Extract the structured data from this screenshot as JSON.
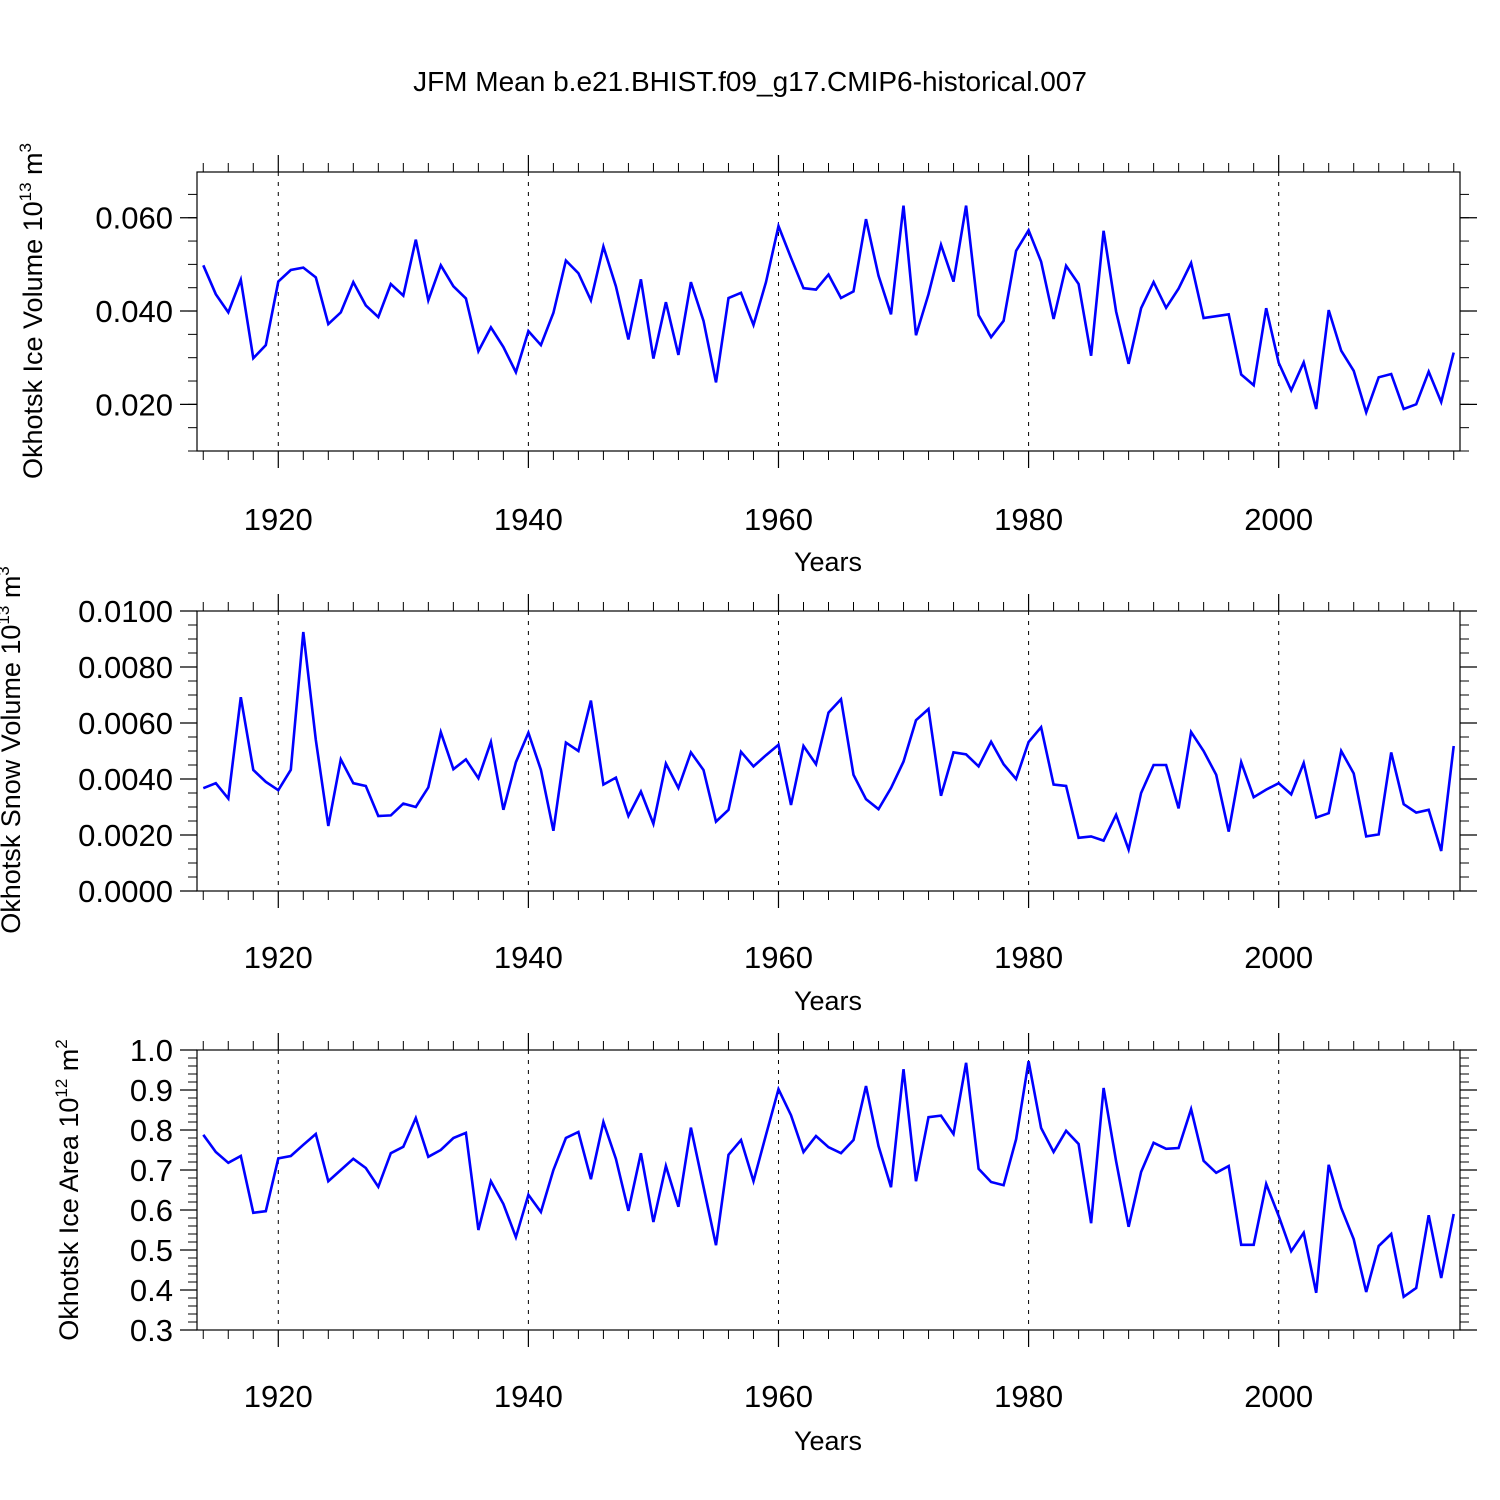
{
  "figure_title": "JFM Mean b.e21.BHIST.f09_g17.CMIP6-historical.007",
  "chart_data": [
    {
      "type": "line",
      "title": "",
      "xlabel": "Years",
      "ylabel_main": "Okhotsk Ice Volume 10",
      "ylabel_exp": "13",
      "ylabel_unit": " m",
      "ylabel_unit_exp": "3",
      "xlim": [
        1913.5,
        2014.5
      ],
      "ylim": [
        0.01,
        0.0698
      ],
      "xticks": [
        1920,
        1940,
        1960,
        1980,
        2000
      ],
      "xtick_labels": [
        "1920",
        "1940",
        "1960",
        "1980",
        "2000"
      ],
      "yticks": [
        0.02,
        0.04,
        0.06
      ],
      "ytick_labels": [
        "0.020",
        "0.040",
        "0.060"
      ],
      "minor_step": 0.005,
      "grid": "vertical dashed at major x ticks",
      "series": [
        {
          "name": "Okhotsk Ice Volume",
          "color": "#0000ff",
          "x": [
            1914,
            1915,
            1916,
            1917,
            1918,
            1919,
            1920,
            1921,
            1922,
            1923,
            1924,
            1925,
            1926,
            1927,
            1928,
            1929,
            1930,
            1931,
            1932,
            1933,
            1934,
            1935,
            1936,
            1937,
            1938,
            1939,
            1940,
            1941,
            1942,
            1943,
            1944,
            1945,
            1946,
            1947,
            1948,
            1949,
            1950,
            1951,
            1952,
            1953,
            1954,
            1955,
            1956,
            1957,
            1958,
            1959,
            1960,
            1961,
            1962,
            1963,
            1964,
            1965,
            1966,
            1967,
            1968,
            1969,
            1970,
            1971,
            1972,
            1973,
            1974,
            1975,
            1976,
            1977,
            1978,
            1979,
            1980,
            1981,
            1982,
            1983,
            1984,
            1985,
            1986,
            1987,
            1988,
            1989,
            1990,
            1991,
            1992,
            1993,
            1994,
            1995,
            1996,
            1997,
            1998,
            1999,
            2000,
            2001,
            2002,
            2003,
            2004,
            2005,
            2006,
            2007,
            2008,
            2009,
            2010,
            2011,
            2012,
            2013,
            2014
          ],
          "values": [
            0.0498,
            0.0436,
            0.0397,
            0.0467,
            0.0299,
            0.0327,
            0.0463,
            0.0488,
            0.0493,
            0.0472,
            0.0372,
            0.0397,
            0.0462,
            0.0412,
            0.0387,
            0.0458,
            0.0433,
            0.0553,
            0.0423,
            0.0498,
            0.0453,
            0.0427,
            0.0314,
            0.0365,
            0.0323,
            0.0269,
            0.0357,
            0.0327,
            0.0396,
            0.0508,
            0.0481,
            0.0423,
            0.0538,
            0.0453,
            0.0339,
            0.0468,
            0.0298,
            0.0419,
            0.0306,
            0.0462,
            0.0379,
            0.0247,
            0.0428,
            0.0439,
            0.037,
            0.0462,
            0.0582,
            0.0514,
            0.0449,
            0.0446,
            0.0478,
            0.0428,
            0.0442,
            0.0597,
            0.0476,
            0.0393,
            0.0626,
            0.0348,
            0.0436,
            0.0542,
            0.0463,
            0.0626,
            0.0391,
            0.0344,
            0.0379,
            0.0529,
            0.0573,
            0.0506,
            0.0383,
            0.0497,
            0.0458,
            0.0304,
            0.0572,
            0.0399,
            0.0287,
            0.0406,
            0.0462,
            0.0407,
            0.0448,
            0.0503,
            0.0385,
            0.0389,
            0.0393,
            0.0264,
            0.0241,
            0.0406,
            0.0289,
            0.023,
            0.029,
            0.019,
            0.0402,
            0.0315,
            0.0272,
            0.0183,
            0.0258,
            0.0265,
            0.019,
            0.02,
            0.027,
            0.0205,
            0.0311
          ]
        }
      ]
    },
    {
      "type": "line",
      "title": "",
      "xlabel": "Years",
      "ylabel_main": "Okhotsk Snow Volume 10",
      "ylabel_exp": "13",
      "ylabel_unit": " m",
      "ylabel_unit_exp": "3",
      "xlim": [
        1913.5,
        2014.5
      ],
      "ylim": [
        0.0,
        0.01
      ],
      "xticks": [
        1920,
        1940,
        1960,
        1980,
        2000
      ],
      "xtick_labels": [
        "1920",
        "1940",
        "1960",
        "1980",
        "2000"
      ],
      "yticks": [
        0.0,
        0.002,
        0.004,
        0.006,
        0.008,
        0.01
      ],
      "ytick_labels": [
        "0.0000",
        "0.0020",
        "0.0040",
        "0.0060",
        "0.0080",
        "0.0100"
      ],
      "minor_step": 0.0005,
      "grid": "vertical dashed at major x ticks",
      "series": [
        {
          "name": "Okhotsk Snow Volume",
          "color": "#0000ff",
          "x": [
            1914,
            1915,
            1916,
            1917,
            1918,
            1919,
            1920,
            1921,
            1922,
            1923,
            1924,
            1925,
            1926,
            1927,
            1928,
            1929,
            1930,
            1931,
            1932,
            1933,
            1934,
            1935,
            1936,
            1937,
            1938,
            1939,
            1940,
            1941,
            1942,
            1943,
            1944,
            1945,
            1946,
            1947,
            1948,
            1949,
            1950,
            1951,
            1952,
            1953,
            1954,
            1955,
            1956,
            1957,
            1958,
            1959,
            1960,
            1961,
            1962,
            1963,
            1964,
            1965,
            1966,
            1967,
            1968,
            1969,
            1970,
            1971,
            1972,
            1973,
            1974,
            1975,
            1976,
            1977,
            1978,
            1979,
            1980,
            1981,
            1982,
            1983,
            1984,
            1985,
            1986,
            1987,
            1988,
            1989,
            1990,
            1991,
            1992,
            1993,
            1994,
            1995,
            1996,
            1997,
            1998,
            1999,
            2000,
            2001,
            2002,
            2003,
            2004,
            2005,
            2006,
            2007,
            2008,
            2009,
            2010,
            2011,
            2012,
            2013,
            2014
          ],
          "values": [
            0.00367,
            0.00385,
            0.0033,
            0.00692,
            0.00432,
            0.0039,
            0.0036,
            0.00433,
            0.00925,
            0.0054,
            0.00232,
            0.0047,
            0.00385,
            0.00375,
            0.00268,
            0.0027,
            0.00312,
            0.003,
            0.0037,
            0.00567,
            0.00435,
            0.0047,
            0.00403,
            0.00532,
            0.0029,
            0.0046,
            0.00565,
            0.00433,
            0.00215,
            0.0053,
            0.005,
            0.0068,
            0.0038,
            0.00405,
            0.00268,
            0.00355,
            0.0024,
            0.00455,
            0.00368,
            0.00495,
            0.00432,
            0.00248,
            0.0029,
            0.00497,
            0.00445,
            0.00485,
            0.00522,
            0.00307,
            0.00518,
            0.00453,
            0.00637,
            0.00685,
            0.00415,
            0.00328,
            0.00292,
            0.00368,
            0.00462,
            0.0061,
            0.0065,
            0.0034,
            0.00495,
            0.00488,
            0.00445,
            0.00533,
            0.00453,
            0.004,
            0.00532,
            0.00585,
            0.0038,
            0.00375,
            0.0019,
            0.00195,
            0.0018,
            0.00272,
            0.00148,
            0.0035,
            0.0045,
            0.0045,
            0.00295,
            0.00568,
            0.005,
            0.00415,
            0.00212,
            0.0046,
            0.00335,
            0.00362,
            0.00385,
            0.00345,
            0.00457,
            0.00262,
            0.00278,
            0.005,
            0.0042,
            0.00195,
            0.00202,
            0.00495,
            0.0031,
            0.0028,
            0.0029,
            0.00143,
            0.00518
          ]
        }
      ]
    },
    {
      "type": "line",
      "title": "",
      "xlabel": "Years",
      "ylabel_main": "Okhotsk Ice Area 10",
      "ylabel_exp": "12",
      "ylabel_unit": " m",
      "ylabel_unit_exp": "2",
      "xlim": [
        1913.5,
        2014.5
      ],
      "ylim": [
        0.3,
        1.0
      ],
      "xticks": [
        1920,
        1940,
        1960,
        1980,
        2000
      ],
      "xtick_labels": [
        "1920",
        "1940",
        "1960",
        "1980",
        "2000"
      ],
      "yticks": [
        0.3,
        0.4,
        0.5,
        0.6,
        0.7,
        0.8,
        0.9,
        1.0
      ],
      "ytick_labels": [
        "0.3",
        "0.4",
        "0.5",
        "0.6",
        "0.7",
        "0.8",
        "0.9",
        "1.0"
      ],
      "minor_step": 0.02,
      "grid": "vertical dashed at major x ticks",
      "series": [
        {
          "name": "Okhotsk Ice Area",
          "color": "#0000ff",
          "x": [
            1914,
            1915,
            1916,
            1917,
            1918,
            1919,
            1920,
            1921,
            1922,
            1923,
            1924,
            1925,
            1926,
            1927,
            1928,
            1929,
            1930,
            1931,
            1932,
            1933,
            1934,
            1935,
            1936,
            1937,
            1938,
            1939,
            1940,
            1941,
            1942,
            1943,
            1944,
            1945,
            1946,
            1947,
            1948,
            1949,
            1950,
            1951,
            1952,
            1953,
            1954,
            1955,
            1956,
            1957,
            1958,
            1959,
            1960,
            1961,
            1962,
            1963,
            1964,
            1965,
            1966,
            1967,
            1968,
            1969,
            1970,
            1971,
            1972,
            1973,
            1974,
            1975,
            1976,
            1977,
            1978,
            1979,
            1980,
            1981,
            1982,
            1983,
            1984,
            1985,
            1986,
            1987,
            1988,
            1989,
            1990,
            1991,
            1992,
            1993,
            1994,
            1995,
            1996,
            1997,
            1998,
            1999,
            2000,
            2001,
            2002,
            2003,
            2004,
            2005,
            2006,
            2007,
            2008,
            2009,
            2010,
            2011,
            2012,
            2013,
            2014
          ],
          "values": [
            0.788,
            0.745,
            0.718,
            0.735,
            0.593,
            0.597,
            0.729,
            0.735,
            0.763,
            0.79,
            0.672,
            0.7,
            0.728,
            0.705,
            0.658,
            0.742,
            0.758,
            0.83,
            0.733,
            0.75,
            0.78,
            0.793,
            0.55,
            0.672,
            0.615,
            0.532,
            0.638,
            0.595,
            0.7,
            0.78,
            0.795,
            0.677,
            0.82,
            0.728,
            0.598,
            0.742,
            0.57,
            0.71,
            0.608,
            0.806,
            0.658,
            0.512,
            0.738,
            0.775,
            0.672,
            0.788,
            0.902,
            0.837,
            0.745,
            0.785,
            0.757,
            0.742,
            0.775,
            0.91,
            0.76,
            0.657,
            0.952,
            0.672,
            0.832,
            0.836,
            0.79,
            0.968,
            0.703,
            0.67,
            0.662,
            0.777,
            0.972,
            0.805,
            0.745,
            0.798,
            0.765,
            0.567,
            0.905,
            0.722,
            0.558,
            0.695,
            0.768,
            0.753,
            0.755,
            0.852,
            0.723,
            0.693,
            0.71,
            0.513,
            0.513,
            0.665,
            0.585,
            0.497,
            0.543,
            0.393,
            0.713,
            0.605,
            0.527,
            0.395,
            0.51,
            0.54,
            0.383,
            0.405,
            0.587,
            0.43,
            0.59
          ]
        }
      ]
    }
  ]
}
